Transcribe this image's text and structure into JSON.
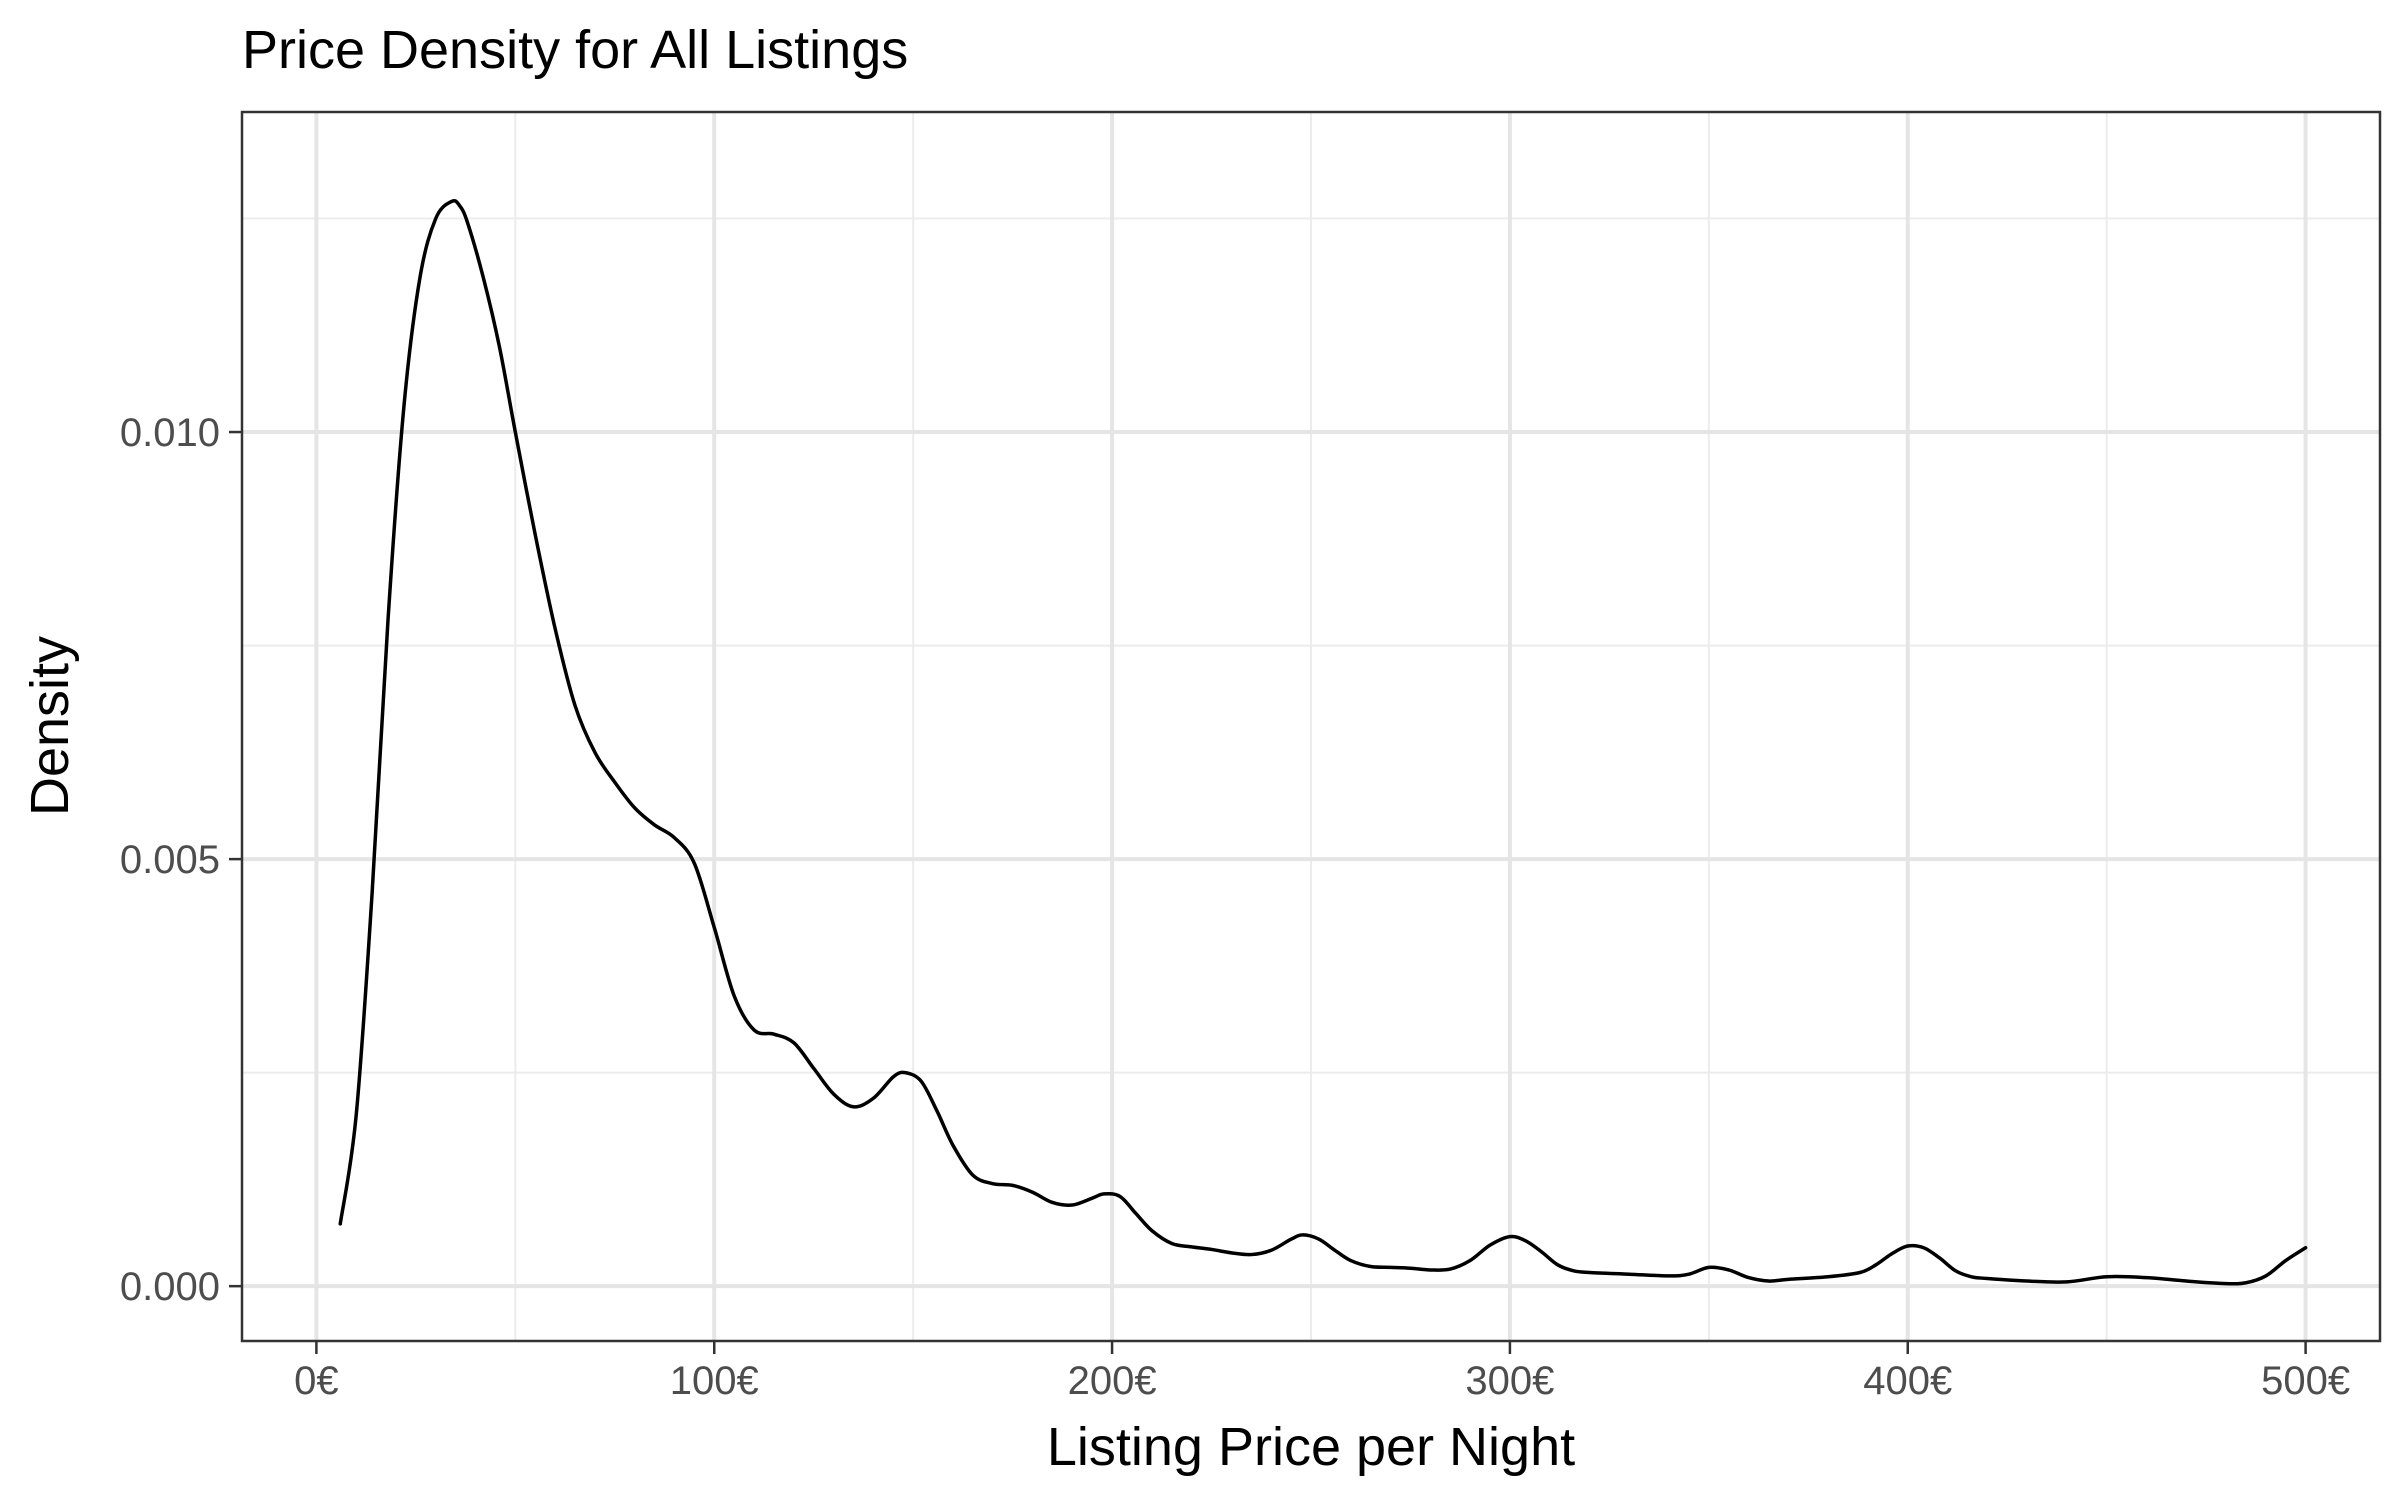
{
  "chart_data": {
    "type": "line",
    "title": "Price Density for All Listings",
    "xlabel": "Listing Price per Night",
    "ylabel": "Density",
    "xlim": [
      -18.7,
      518.7
    ],
    "ylim": [
      -0.000642,
      0.013747
    ],
    "x_ticks": [
      {
        "value": 0,
        "label": "0€"
      },
      {
        "value": 100,
        "label": "100€"
      },
      {
        "value": 200,
        "label": "200€"
      },
      {
        "value": 300,
        "label": "300€"
      },
      {
        "value": 400,
        "label": "400€"
      },
      {
        "value": 500,
        "label": "500€"
      }
    ],
    "y_ticks": [
      {
        "value": 0.0,
        "label": "0.000"
      },
      {
        "value": 0.005,
        "label": "0.005"
      },
      {
        "value": 0.01,
        "label": "0.010"
      }
    ],
    "x_minor_ticks": [
      50,
      150,
      250,
      350,
      450
    ],
    "y_minor_ticks": [
      0.0025,
      0.0075,
      0.0125
    ],
    "grid": true,
    "series": [
      {
        "color": "#000000",
        "x": [
          6,
          10,
          14,
          18,
          22,
          26,
          30,
          34,
          36,
          38,
          42,
          46,
          50,
          55,
          60,
          65,
          70,
          75,
          80,
          85,
          90,
          95,
          100,
          105,
          110,
          115,
          120,
          125,
          130,
          135,
          140,
          145,
          148,
          152,
          156,
          160,
          165,
          170,
          175,
          180,
          185,
          190,
          195,
          198,
          202,
          206,
          210,
          215,
          220,
          225,
          230,
          235,
          240,
          245,
          248,
          252,
          256,
          260,
          265,
          270,
          275,
          280,
          285,
          290,
          295,
          300,
          304,
          308,
          312,
          316,
          320,
          330,
          340,
          345,
          350,
          355,
          360,
          365,
          370,
          380,
          388,
          392,
          396,
          400,
          404,
          408,
          412,
          416,
          420,
          430,
          440,
          450,
          460,
          470,
          480,
          485,
          490,
          495,
          500
        ],
        "y": [
          0.00073,
          0.002,
          0.0046,
          0.0078,
          0.0103,
          0.0118,
          0.0125,
          0.0127,
          0.01265,
          0.01245,
          0.0118,
          0.011,
          0.01,
          0.0088,
          0.0077,
          0.0068,
          0.00625,
          0.0059,
          0.0056,
          0.0054,
          0.00525,
          0.00495,
          0.0042,
          0.0034,
          0.003,
          0.00295,
          0.00285,
          0.00255,
          0.00225,
          0.0021,
          0.0022,
          0.00245,
          0.0025,
          0.0024,
          0.00205,
          0.00165,
          0.0013,
          0.0012,
          0.00118,
          0.0011,
          0.00098,
          0.00095,
          0.00103,
          0.00108,
          0.00105,
          0.00085,
          0.00065,
          0.0005,
          0.00046,
          0.00043,
          0.00039,
          0.00037,
          0.00042,
          0.00055,
          0.0006,
          0.00055,
          0.00042,
          0.0003,
          0.00023,
          0.00022,
          0.00021,
          0.00019,
          0.0002,
          0.0003,
          0.00048,
          0.00058,
          0.00053,
          0.0004,
          0.00025,
          0.00018,
          0.00016,
          0.00014,
          0.00012,
          0.00014,
          0.00022,
          0.00019,
          0.0001,
          6e-05,
          8e-05,
          0.00011,
          0.00016,
          0.00025,
          0.00038,
          0.00047,
          0.00045,
          0.00033,
          0.00018,
          0.00011,
          9e-05,
          6e-05,
          5e-05,
          0.00011,
          0.0001,
          6e-05,
          3e-05,
          4e-05,
          0.00012,
          0.0003,
          0.00045
        ]
      }
    ]
  }
}
